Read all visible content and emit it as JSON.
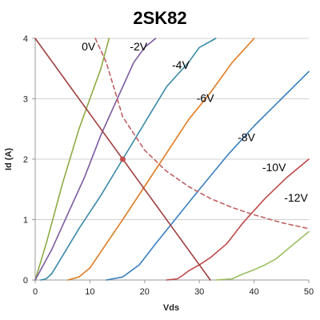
{
  "chart_data": {
    "type": "line",
    "title": "2SK82",
    "xlabel": "Vds",
    "ylabel": "Id (A)",
    "xlim": [
      0,
      50
    ],
    "ylim": [
      0,
      4
    ],
    "x_ticks": [
      0,
      10,
      20,
      30,
      40,
      50
    ],
    "y_ticks": [
      0,
      1,
      2,
      3,
      4
    ],
    "grid": "horizontal",
    "series": [
      {
        "name": "0V",
        "color": "#8aac42",
        "style": "solid",
        "points": [
          [
            0,
            0
          ],
          [
            2,
            0.6
          ],
          [
            5,
            1.6
          ],
          [
            8,
            2.5
          ],
          [
            10,
            3.0
          ],
          [
            12,
            3.5
          ],
          [
            13.5,
            4.0
          ]
        ],
        "label_at": [
          8.5,
          3.8
        ]
      },
      {
        "name": "-2V",
        "color": "#7c5aa0",
        "style": "solid",
        "points": [
          [
            0,
            0
          ],
          [
            3,
            0.5
          ],
          [
            6,
            1.1
          ],
          [
            9,
            1.7
          ],
          [
            12,
            2.4
          ],
          [
            15,
            3.0
          ],
          [
            18,
            3.6
          ],
          [
            20,
            3.85
          ],
          [
            22,
            4.0
          ]
        ],
        "label_at": [
          17.3,
          3.8
        ]
      },
      {
        "name": "-4V",
        "color": "#3a8aa8",
        "style": "solid",
        "points": [
          [
            1,
            0
          ],
          [
            2,
            0.02
          ],
          [
            3,
            0.1
          ],
          [
            5,
            0.4
          ],
          [
            8,
            0.85
          ],
          [
            12,
            1.4
          ],
          [
            16,
            2.0
          ],
          [
            20,
            2.6
          ],
          [
            24,
            3.2
          ],
          [
            28,
            3.6
          ],
          [
            30,
            3.85
          ],
          [
            33,
            4.0
          ]
        ],
        "label_at": [
          25,
          3.5
        ]
      },
      {
        "name": "-6V",
        "color": "#e07b20",
        "style": "solid",
        "points": [
          [
            6,
            0
          ],
          [
            8,
            0.05
          ],
          [
            10,
            0.2
          ],
          [
            13,
            0.6
          ],
          [
            16,
            1.0
          ],
          [
            20,
            1.55
          ],
          [
            24,
            2.1
          ],
          [
            28,
            2.65
          ],
          [
            32,
            3.1
          ],
          [
            36,
            3.6
          ],
          [
            40,
            4.0
          ]
        ],
        "label_at": [
          29.5,
          2.95
        ]
      },
      {
        "name": "-8V",
        "color": "#3a7fc0",
        "style": "solid",
        "points": [
          [
            13,
            0
          ],
          [
            16,
            0.05
          ],
          [
            19,
            0.25
          ],
          [
            22,
            0.6
          ],
          [
            26,
            1.05
          ],
          [
            30,
            1.5
          ],
          [
            35,
            2.05
          ],
          [
            40,
            2.55
          ],
          [
            45,
            3.0
          ],
          [
            50,
            3.45
          ]
        ],
        "label_at": [
          37,
          2.3
        ]
      },
      {
        "name": "-10V",
        "color": "#c04848",
        "style": "solid",
        "points": [
          [
            24,
            0
          ],
          [
            26,
            0.02
          ],
          [
            27,
            0.08
          ],
          [
            28,
            0.15
          ],
          [
            30,
            0.25
          ],
          [
            32,
            0.37
          ],
          [
            35,
            0.6
          ],
          [
            38,
            0.95
          ],
          [
            42,
            1.35
          ],
          [
            46,
            1.7
          ],
          [
            50,
            2.0
          ]
        ],
        "label_at": [
          41.5,
          1.8
        ]
      },
      {
        "name": "-12V",
        "color": "#9cc060",
        "style": "solid",
        "points": [
          [
            33,
            0
          ],
          [
            36,
            0.02
          ],
          [
            38,
            0.1
          ],
          [
            40,
            0.17
          ],
          [
            42,
            0.25
          ],
          [
            44,
            0.35
          ],
          [
            46,
            0.5
          ],
          [
            48,
            0.65
          ],
          [
            50,
            0.8
          ]
        ],
        "label_at": [
          45.5,
          1.3
        ]
      },
      {
        "name": "",
        "color": "#c06060",
        "style": "dashed",
        "points": [
          [
            11,
            4.0
          ],
          [
            13,
            3.6
          ],
          [
            16,
            2.7
          ],
          [
            20,
            2.15
          ],
          [
            24,
            1.8
          ],
          [
            28,
            1.55
          ],
          [
            32,
            1.35
          ],
          [
            36,
            1.2
          ],
          [
            40,
            1.08
          ],
          [
            45,
            0.95
          ],
          [
            50,
            0.85
          ]
        ]
      },
      {
        "name": "",
        "color": "#a04040",
        "style": "solid",
        "points": [
          [
            0,
            4.0
          ],
          [
            32,
            0
          ]
        ]
      }
    ],
    "marker": {
      "x": 16,
      "y": 2.0,
      "color": "#c0504d"
    }
  }
}
